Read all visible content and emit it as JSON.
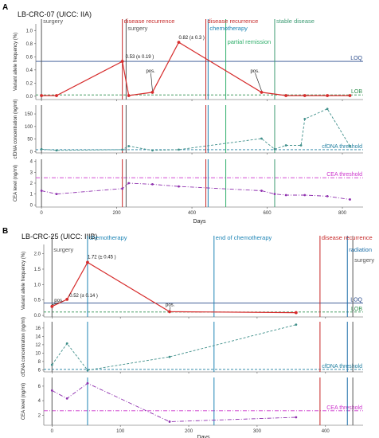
{
  "colors": {
    "disease_recurrence": "#c62828",
    "surgery": "#555555",
    "chemotherapy": "#1d84b5",
    "partial_remission": "#2eae6a",
    "stable_disease": "#3a9a72",
    "end_of_chemotherapy": "#1d84b5",
    "radiation": "#1d6fa8",
    "vaf_line": "#d62b2b",
    "cfdna_line": "#3f8f8a",
    "cea_line": "#8e2fae",
    "loq": "#2b4c8c",
    "lob": "#2f8f4e",
    "cfdna_threshold": "#1f7fa0",
    "cea_threshold": "#cc33cc"
  },
  "chart_data": [
    {
      "panel": "A",
      "title": "LB-CRC-07  (UICC: IIA)",
      "xlabel": "Days",
      "xlim": [
        -15,
        855
      ],
      "xticks": [
        0,
        200,
        400,
        600,
        800
      ],
      "events": [
        {
          "label": "surgery",
          "day": 0,
          "color_key": "surgery",
          "row": 0
        },
        {
          "label": "disease recurrence",
          "day": 215,
          "color_key": "disease_recurrence",
          "row": 0
        },
        {
          "label": "surgery",
          "day": 225,
          "color_key": "surgery",
          "row": 1
        },
        {
          "label": "disease recurrence",
          "day": 437,
          "color_key": "disease_recurrence",
          "row": 0
        },
        {
          "label": "chemotherapy",
          "day": 443,
          "color_key": "chemotherapy",
          "row": 1
        },
        {
          "label": "partial remission",
          "day": 490,
          "color_key": "partial_remission",
          "row": 2
        },
        {
          "label": "stable disease",
          "day": 620,
          "color_key": "stable_disease",
          "row": 0
        }
      ],
      "subplots": [
        {
          "id": "vaf",
          "type": "line",
          "ylabel": "Variant allele frequency (%)",
          "ylim": [
            -0.05,
            1.1
          ],
          "yticks": [
            0.0,
            0.2,
            0.4,
            0.6,
            0.8,
            1.0
          ],
          "tick_labels": [
            "0.0",
            "0.2",
            "0.4",
            "0.6",
            "0.8",
            "1.0"
          ],
          "style": "solid",
          "color_key": "vaf_line",
          "x": [
            0,
            40,
            215,
            232,
            295,
            365,
            585,
            650,
            700,
            760,
            820
          ],
          "y": [
            0.01,
            0.01,
            0.53,
            0.01,
            0.06,
            0.82,
            0.06,
            0.01,
            0.01,
            0.01,
            0.01
          ],
          "thresholds": [
            {
              "label": "LOQ",
              "value": 0.53,
              "color_key": "loq",
              "style": "solid"
            },
            {
              "label": "LOB",
              "value": 0.02,
              "color_key": "lob",
              "style": "dashed"
            }
          ],
          "annotations": [
            {
              "text": "0.53 (± 0.19 )",
              "x": 215,
              "y": 0.53,
              "dx": 4,
              "dy": -4
            },
            {
              "text": "pos.",
              "x": 295,
              "y": 0.06,
              "dx": -8,
              "dy": -25
            },
            {
              "text": "0.82 (± 0.3 )",
              "x": 365,
              "y": 0.82,
              "dx": 0,
              "dy": -4
            },
            {
              "text": "pos.",
              "x": 585,
              "y": 0.06,
              "dx": -14,
              "dy": -25
            }
          ]
        },
        {
          "id": "cfdna",
          "type": "line",
          "ylabel": "cfDNA concentration (ng/ml)",
          "ylim": [
            -5,
            185
          ],
          "yticks": [
            0,
            50,
            100,
            150
          ],
          "tick_labels": [
            "0",
            "50",
            "100",
            "150"
          ],
          "style": "dashed",
          "color_key": "cfdna_line",
          "x": [
            0,
            40,
            215,
            232,
            295,
            365,
            585,
            620,
            650,
            690,
            700,
            760,
            820
          ],
          "y": [
            10,
            5,
            8,
            22,
            5,
            8,
            52,
            10,
            25,
            25,
            130,
            170,
            22
          ],
          "thresholds": [
            {
              "label": "cfDNA threshold",
              "value": 8,
              "color_key": "cfdna_threshold",
              "style": "dashed"
            }
          ],
          "annotations": []
        },
        {
          "id": "cea",
          "type": "line",
          "ylabel": "CEA level (ng/ml)",
          "ylim": [
            -0.2,
            4.2
          ],
          "yticks": [
            0,
            1,
            2,
            3,
            4
          ],
          "tick_labels": [
            "0",
            "1",
            "2",
            "3",
            "4"
          ],
          "style": "dashdot",
          "color_key": "cea_line",
          "x": [
            0,
            40,
            215,
            232,
            295,
            365,
            585,
            620,
            650,
            700,
            760,
            820
          ],
          "y": [
            1.3,
            1.0,
            1.5,
            2.0,
            1.9,
            1.7,
            1.3,
            1.0,
            0.9,
            0.9,
            0.8,
            0.5
          ],
          "thresholds": [
            {
              "label": "CEA threshold",
              "value": 2.5,
              "color_key": "cea_threshold",
              "style": "dashdot"
            }
          ],
          "annotations": []
        }
      ]
    },
    {
      "panel": "B",
      "title": "LB-CRC-25  (UICC: IIIB)",
      "xlabel": "Days",
      "xlim": [
        -12,
        455
      ],
      "xticks": [
        0,
        100,
        200,
        300,
        400
      ],
      "events": [
        {
          "label": "surgery",
          "day": 0,
          "color_key": "surgery",
          "row": 1
        },
        {
          "label": "chemotherapy",
          "day": 52,
          "color_key": "chemotherapy",
          "row": 0
        },
        {
          "label": "end of chemotherapy",
          "day": 237,
          "color_key": "end_of_chemotherapy",
          "row": 0
        },
        {
          "label": "disease recurrence",
          "day": 392,
          "color_key": "disease_recurrence",
          "row": 0
        },
        {
          "label": "radiation",
          "day": 432,
          "color_key": "radiation",
          "row": 1
        },
        {
          "label": "surgery",
          "day": 440,
          "color_key": "surgery",
          "row": 2
        }
      ],
      "subplots": [
        {
          "id": "vaf",
          "type": "line",
          "ylabel": "Variant allele frequency (%)",
          "ylim": [
            -0.05,
            2.3
          ],
          "yticks": [
            0.0,
            0.5,
            1.0,
            1.5,
            2.0
          ],
          "tick_labels": [
            "0.0",
            "0.5",
            "1.0",
            "1.5",
            "2.0"
          ],
          "style": "solid",
          "color_key": "vaf_line",
          "x": [
            0,
            22,
            52,
            172,
            357
          ],
          "y": [
            0.29,
            0.52,
            1.72,
            0.12,
            0.09
          ],
          "thresholds": [
            {
              "label": "LOQ",
              "value": 0.4,
              "color_key": "loq",
              "style": "solid"
            },
            {
              "label": "LOB",
              "value": 0.11,
              "color_key": "lob",
              "style": "dashed"
            }
          ],
          "annotations": [
            {
              "text": "pos.",
              "x": 0,
              "y": 0.29,
              "dx": 3,
              "dy": -6
            },
            {
              "text": "0.52 (± 0.14 )",
              "x": 22,
              "y": 0.52,
              "dx": 3,
              "dy": -3
            },
            {
              "text": "1.72 (± 0.45 )",
              "x": 52,
              "y": 1.72,
              "dx": 0,
              "dy": -5
            },
            {
              "text": "pos.",
              "x": 172,
              "y": 0.12,
              "dx": -5,
              "dy": -7
            }
          ]
        },
        {
          "id": "cfdna",
          "type": "line",
          "ylabel": "cfDNA concentration (ng/ml)",
          "ylim": [
            5.5,
            17.5
          ],
          "yticks": [
            6,
            8,
            10,
            12,
            14,
            16
          ],
          "tick_labels": [
            "6",
            "8",
            "10",
            "12",
            "14",
            "16"
          ],
          "style": "dashed",
          "color_key": "cfdna_line",
          "x": [
            0,
            22,
            52,
            172,
            357
          ],
          "y": [
            7.2,
            12.3,
            5.9,
            9.1,
            16.8
          ],
          "thresholds": [
            {
              "label": "cfDNA threshold",
              "value": 6.1,
              "color_key": "cfdna_threshold",
              "style": "dashed"
            }
          ],
          "annotations": []
        },
        {
          "id": "cea",
          "type": "line",
          "ylabel": "CEA level (ng/ml)",
          "ylim": [
            0.6,
            7.2
          ],
          "yticks": [
            2,
            4,
            6
          ],
          "tick_labels": [
            "2",
            "4",
            "6"
          ],
          "style": "dashdot",
          "color_key": "cea_line",
          "x": [
            0,
            22,
            52,
            172,
            357
          ],
          "y": [
            5.4,
            4.3,
            6.4,
            1.1,
            1.7
          ],
          "thresholds": [
            {
              "label": "CEA threshold",
              "value": 2.6,
              "color_key": "cea_threshold",
              "style": "dashdot"
            }
          ],
          "annotations": []
        }
      ]
    }
  ]
}
